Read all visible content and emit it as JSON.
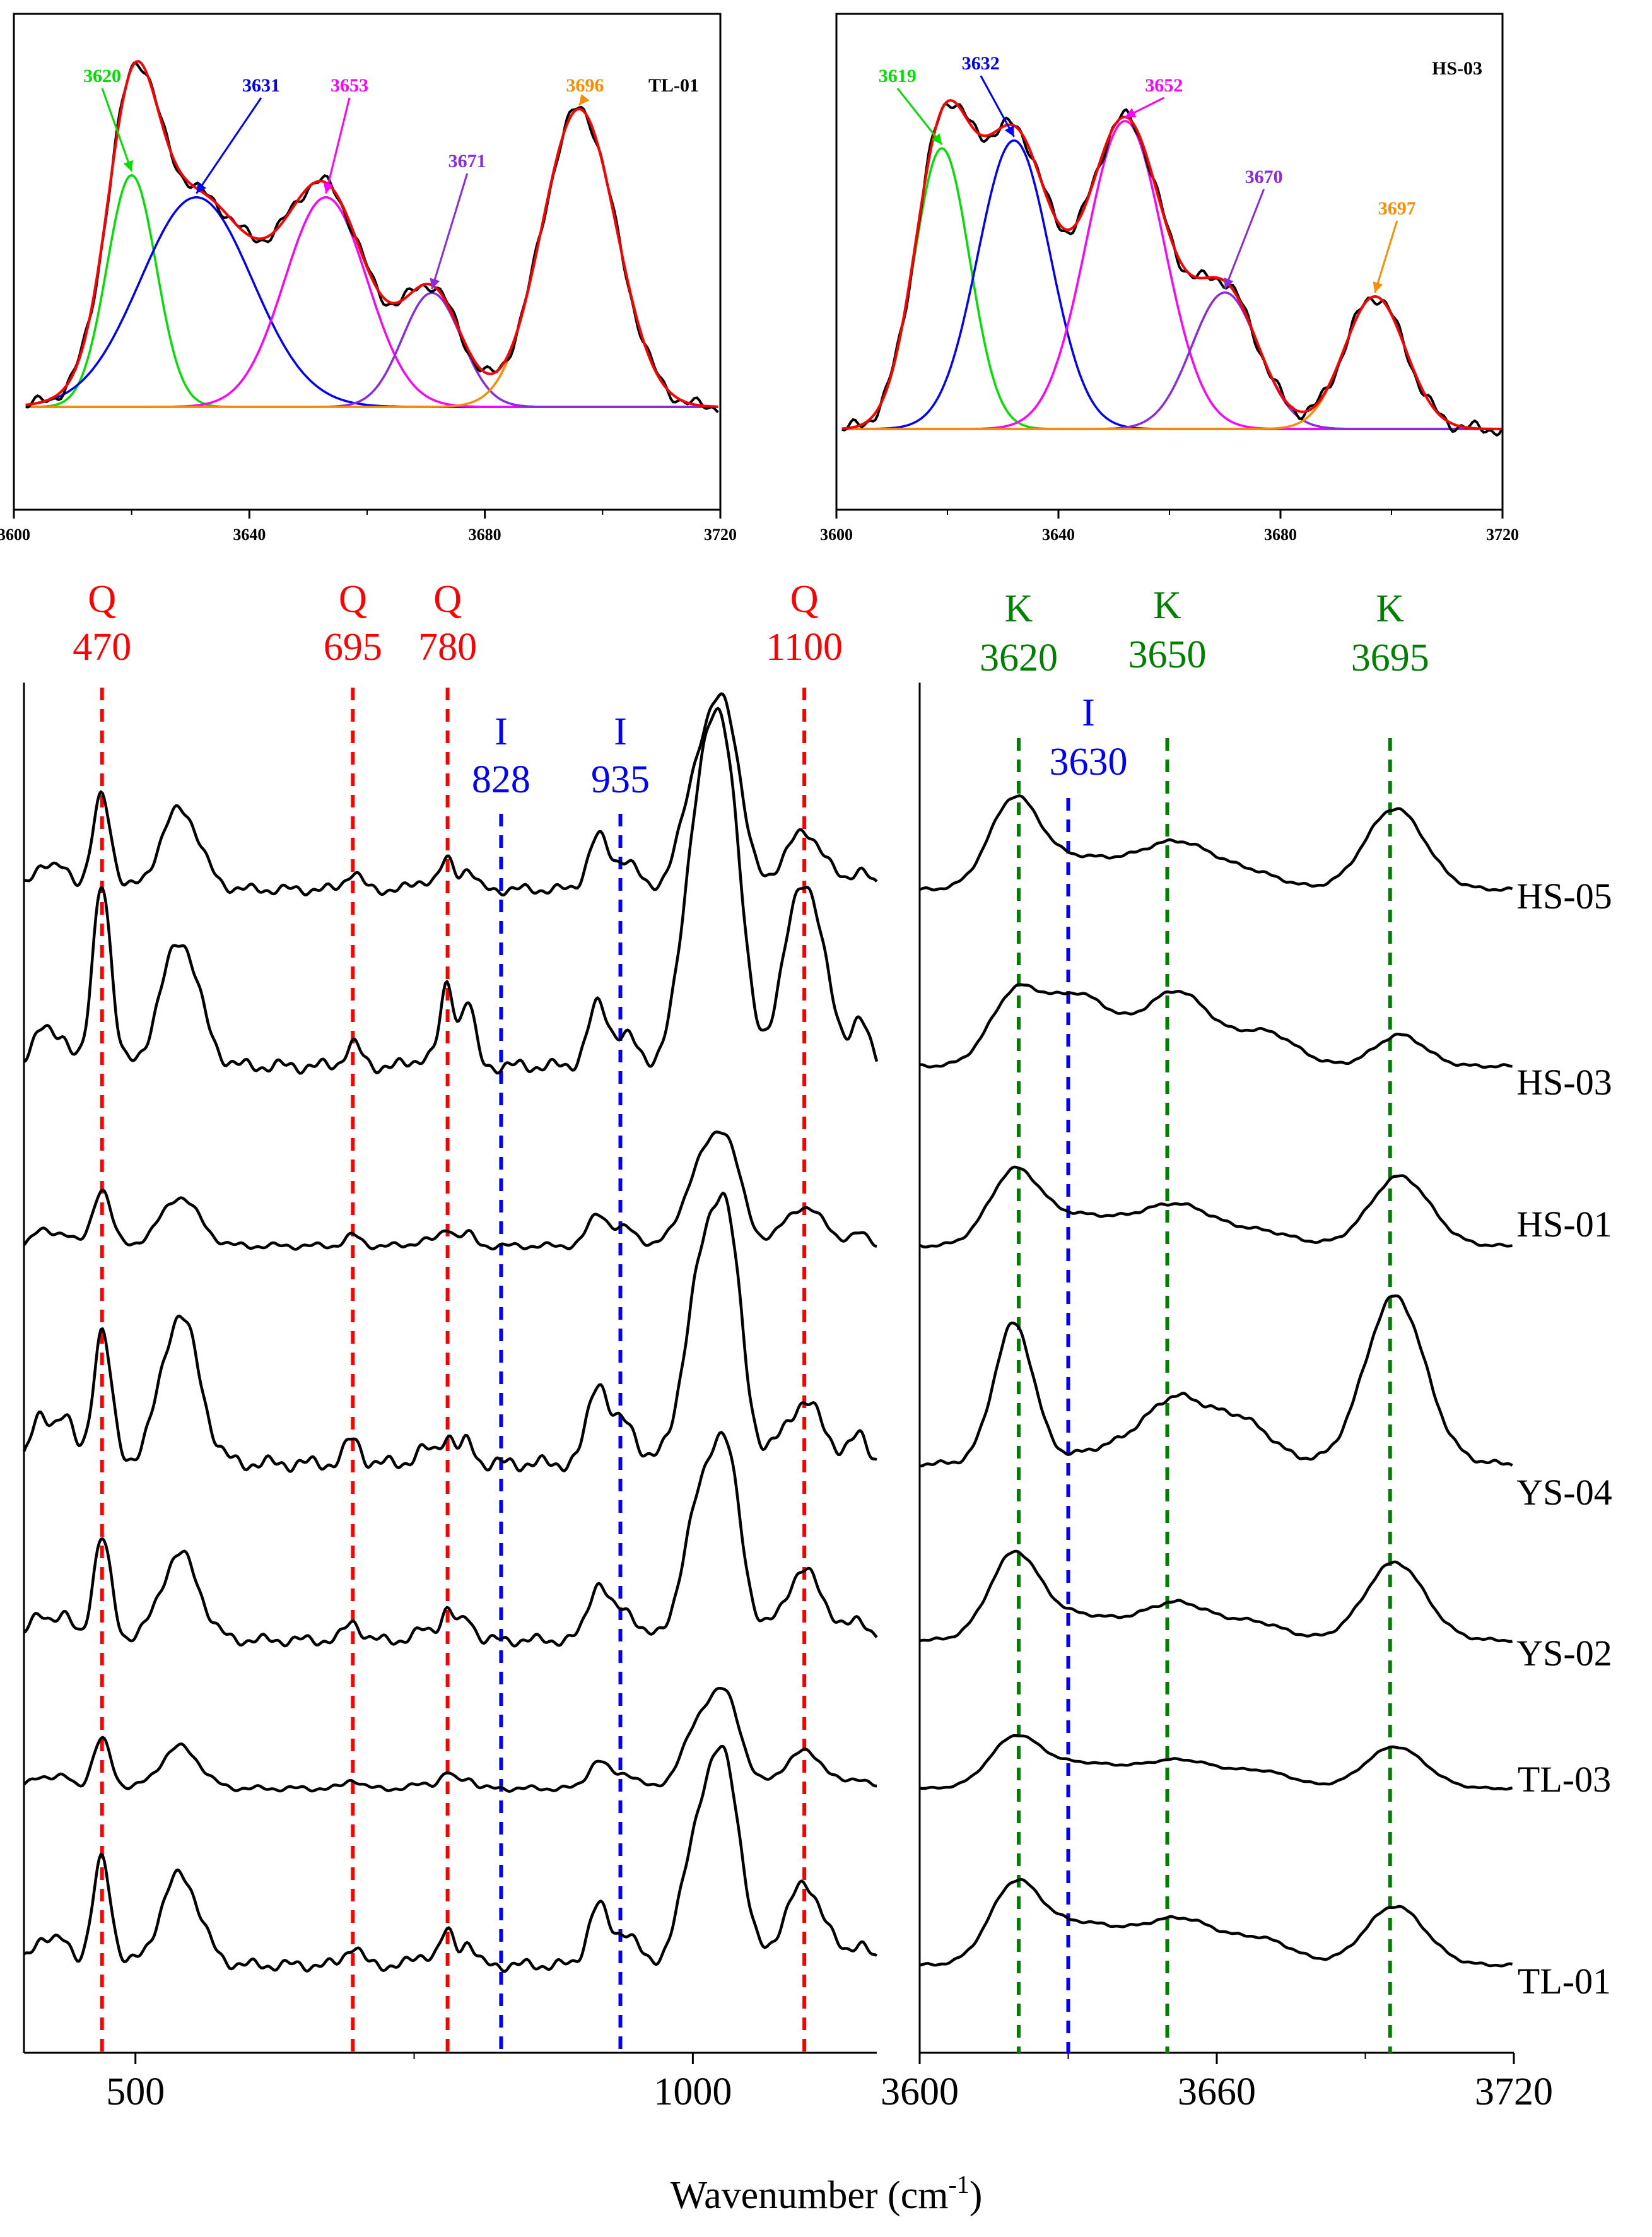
{
  "colors": {
    "axis": "#000000",
    "spectrum": "#000000",
    "quartz": "#ff0000",
    "illite": "#0000ff",
    "kaolinite": "#008000",
    "fit_envelope": "#ff0000",
    "green": "#00e000",
    "blue": "#0000ff",
    "magenta": "#ff00ff",
    "violet": "#8a2be2",
    "orange": "#ff8c00"
  },
  "chart_data": [
    {
      "id": "inset-tl01",
      "type": "line",
      "title": "TL-01",
      "xlim": [
        3600,
        3720
      ],
      "xticks": [
        3600,
        3640,
        3680,
        3720
      ],
      "xtick_labels": [
        "3600",
        "3640",
        "3680",
        "3720"
      ],
      "ylim": [
        0,
        1.15
      ],
      "x_range": [
        3602,
        3720
      ],
      "measured_color": "black",
      "envelope_color": "fit_envelope",
      "components": [
        {
          "center": 3620,
          "label": "3620",
          "amp": 0.63,
          "width": 4.2,
          "color": "green"
        },
        {
          "center": 3631,
          "label": "3631",
          "amp": 0.57,
          "width": 9.5,
          "color": "blue"
        },
        {
          "center": 3653,
          "label": "3653",
          "amp": 0.57,
          "width": 7.0,
          "color": "magenta"
        },
        {
          "center": 3671,
          "label": "3671",
          "amp": 0.31,
          "width": 5.0,
          "color": "violet"
        },
        {
          "center": 3696,
          "label": "3696",
          "amp": 0.81,
          "width": 6.3,
          "color": "orange"
        }
      ]
    },
    {
      "id": "inset-hs03",
      "type": "line",
      "title": "HS-03",
      "xlim": [
        3600,
        3720
      ],
      "xticks": [
        3600,
        3640,
        3680,
        3720
      ],
      "xtick_labels": [
        "3600",
        "3640",
        "3680",
        "3720"
      ],
      "ylim": [
        0,
        1.15
      ],
      "x_range": [
        3601,
        3720
      ],
      "measured_color": "black",
      "envelope_color": "fit_envelope",
      "components": [
        {
          "center": 3619,
          "label": "3619",
          "amp": 0.72,
          "width": 5.0,
          "color": "green"
        },
        {
          "center": 3632,
          "label": "3632",
          "amp": 0.74,
          "width": 6.5,
          "color": "blue"
        },
        {
          "center": 3652,
          "label": "3652",
          "amp": 0.79,
          "width": 7.0,
          "color": "magenta"
        },
        {
          "center": 3670,
          "label": "3670",
          "amp": 0.35,
          "width": 6.0,
          "color": "violet"
        },
        {
          "center": 3697,
          "label": "3697",
          "amp": 0.34,
          "width": 5.5,
          "color": "orange"
        }
      ]
    },
    {
      "id": "main-low",
      "type": "line",
      "xlim": [
        400,
        1165
      ],
      "xticks": [
        500,
        1000
      ],
      "xtick_labels": [
        "500",
        "1000"
      ],
      "series_names": [
        "HS-05",
        "HS-03",
        "HS-01",
        "YS-04",
        "YS-02",
        "TL-03",
        "TL-01"
      ],
      "reference_lines": [
        {
          "position": 470,
          "mineral": "Q",
          "value": "470",
          "color": "quartz"
        },
        {
          "position": 695,
          "mineral": "Q",
          "value": "695",
          "color": "quartz"
        },
        {
          "position": 780,
          "mineral": "Q",
          "value": "780",
          "color": "quartz"
        },
        {
          "position": 828,
          "mineral": "I",
          "value": "828",
          "color": "illite"
        },
        {
          "position": 935,
          "mineral": "I",
          "value": "935",
          "color": "illite"
        },
        {
          "position": 1100,
          "mineral": "Q",
          "value": "1100",
          "color": "quartz"
        }
      ],
      "peaks": [
        {
          "center": 415,
          "width": 9,
          "amp": 0.25
        },
        {
          "center": 436,
          "width": 8,
          "amp": 0.22
        },
        {
          "center": 470,
          "width": 8,
          "amp": 1.0
        },
        {
          "center": 540,
          "width": 17,
          "amp": 0.85
        },
        {
          "center": 695,
          "width": 7,
          "amp": 0.18
        },
        {
          "center": 760,
          "width": 9,
          "amp": 0.1
        },
        {
          "center": 780,
          "width": 6,
          "amp": 0.3
        },
        {
          "center": 798,
          "width": 6,
          "amp": 0.22
        },
        {
          "center": 915,
          "width": 9,
          "amp": 0.55
        },
        {
          "center": 940,
          "width": 10,
          "amp": 0.3
        },
        {
          "center": 1008,
          "width": 16,
          "amp": 1.35
        },
        {
          "center": 1032,
          "width": 13,
          "amp": 1.45
        },
        {
          "center": 1100,
          "width": 18,
          "amp": 0.75
        },
        {
          "center": 1150,
          "width": 8,
          "amp": 0.2
        }
      ],
      "series_params": [
        {
          "name": "HS-05",
          "scale": 0.58,
          "var": [
            1.0,
            1.0,
            1.0,
            1.0,
            1.0,
            1.0,
            1.0,
            1.0,
            1.0,
            1.0,
            1.0,
            1.0,
            0.8,
            1.0
          ]
        },
        {
          "name": "HS-03",
          "scale": 0.75,
          "var": [
            1.2,
            1.0,
            1.5,
            1.2,
            1.0,
            0.8,
            2.2,
            2.4,
            0.9,
            0.8,
            1.6,
            1.3,
            2.0,
            1.7
          ]
        },
        {
          "name": "HS-01",
          "scale": 0.35,
          "var": [
            1.0,
            1.0,
            1.0,
            1.0,
            1.0,
            1.0,
            1.0,
            1.0,
            1.0,
            1.0,
            1.0,
            1.0,
            0.9,
            1.0
          ]
        },
        {
          "name": "YS-04",
          "scale": 0.82,
          "var": [
            1.3,
            1.6,
            1.0,
            1.3,
            1.0,
            1.0,
            0.7,
            0.7,
            1.1,
            1.0,
            1.0,
            1.0,
            0.6,
            1.0
          ]
        },
        {
          "name": "YS-02",
          "scale": 0.62,
          "var": [
            1.0,
            1.0,
            1.0,
            1.0,
            1.0,
            1.0,
            1.0,
            1.0,
            1.0,
            1.0,
            1.0,
            1.0,
            0.9,
            1.0
          ]
        },
        {
          "name": "TL-03",
          "scale": 0.3,
          "var": [
            1.0,
            1.0,
            1.0,
            1.0,
            1.0,
            1.0,
            1.0,
            1.0,
            1.0,
            1.0,
            1.0,
            1.0,
            1.0,
            1.0
          ]
        },
        {
          "name": "TL-01",
          "scale": 0.65,
          "var": [
            1.0,
            1.0,
            1.0,
            1.0,
            1.0,
            1.0,
            1.0,
            1.0,
            1.0,
            1.0,
            1.0,
            1.0,
            1.0,
            1.0
          ]
        }
      ]
    },
    {
      "id": "main-oh",
      "type": "line",
      "xlim": [
        3600,
        3720
      ],
      "xticks": [
        3600,
        3660,
        3720
      ],
      "xtick_labels": [
        "3600",
        "3660",
        "3720"
      ],
      "xlabel": "Wavenumber (cm",
      "xlabel_sup": "-1",
      "xlabel_close": ")",
      "series_names": [
        "HS-05",
        "HS-03",
        "HS-01",
        "YS-04",
        "YS-02",
        "TL-03",
        "TL-01"
      ],
      "reference_lines": [
        {
          "position": 3620,
          "mineral": "K",
          "value": "3620",
          "color": "kaolinite"
        },
        {
          "position": 3630,
          "mineral": "I",
          "value": "3630",
          "color": "illite"
        },
        {
          "position": 3650,
          "mineral": "K",
          "value": "3650",
          "color": "kaolinite"
        },
        {
          "position": 3695,
          "mineral": "K",
          "value": "3695",
          "color": "kaolinite"
        }
      ],
      "series": [
        {
          "name": "HS-05",
          "scale": 0.52,
          "peaks": [
            [
              3619,
              5,
              1.0
            ],
            [
              3632,
              8,
              0.35
            ],
            [
              3652,
              8,
              0.55
            ],
            [
              3668,
              6,
              0.15
            ],
            [
              3696,
              6,
              0.95
            ]
          ]
        },
        {
          "name": "HS-03",
          "scale": 0.5,
          "peaks": [
            [
              3619,
              5,
              0.8
            ],
            [
              3632,
              7,
              0.85
            ],
            [
              3652,
              7,
              0.9
            ],
            [
              3670,
              6,
              0.4
            ],
            [
              3697,
              5,
              0.38
            ]
          ]
        },
        {
          "name": "HS-01",
          "scale": 0.5,
          "peaks": [
            [
              3619,
              5,
              0.85
            ],
            [
              3632,
              8,
              0.35
            ],
            [
              3652,
              8,
              0.5
            ],
            [
              3670,
              6,
              0.15
            ],
            [
              3697,
              6,
              0.85
            ]
          ]
        },
        {
          "name": "YS-04",
          "scale": 0.85,
          "peaks": [
            [
              3619,
              4,
              1.0
            ],
            [
              3640,
              8,
              0.12
            ],
            [
              3652,
              6,
              0.42
            ],
            [
              3665,
              6,
              0.3
            ],
            [
              3696,
              6,
              1.2
            ]
          ]
        },
        {
          "name": "YS-02",
          "scale": 0.5,
          "peaks": [
            [
              3619,
              5,
              1.0
            ],
            [
              3632,
              8,
              0.3
            ],
            [
              3652,
              7,
              0.45
            ],
            [
              3668,
              6,
              0.2
            ],
            [
              3696,
              6,
              0.95
            ]
          ]
        },
        {
          "name": "TL-03",
          "scale": 0.3,
          "peaks": [
            [
              3619,
              5,
              0.9
            ],
            [
              3632,
              9,
              0.5
            ],
            [
              3653,
              8,
              0.55
            ],
            [
              3670,
              6,
              0.3
            ],
            [
              3696,
              6,
              0.85
            ]
          ]
        },
        {
          "name": "TL-01",
          "scale": 0.45,
          "peaks": [
            [
              3619,
              5,
              0.95
            ],
            [
              3632,
              9,
              0.55
            ],
            [
              3653,
              8,
              0.6
            ],
            [
              3670,
              6,
              0.3
            ],
            [
              3696,
              6,
              0.8
            ]
          ]
        }
      ]
    }
  ]
}
